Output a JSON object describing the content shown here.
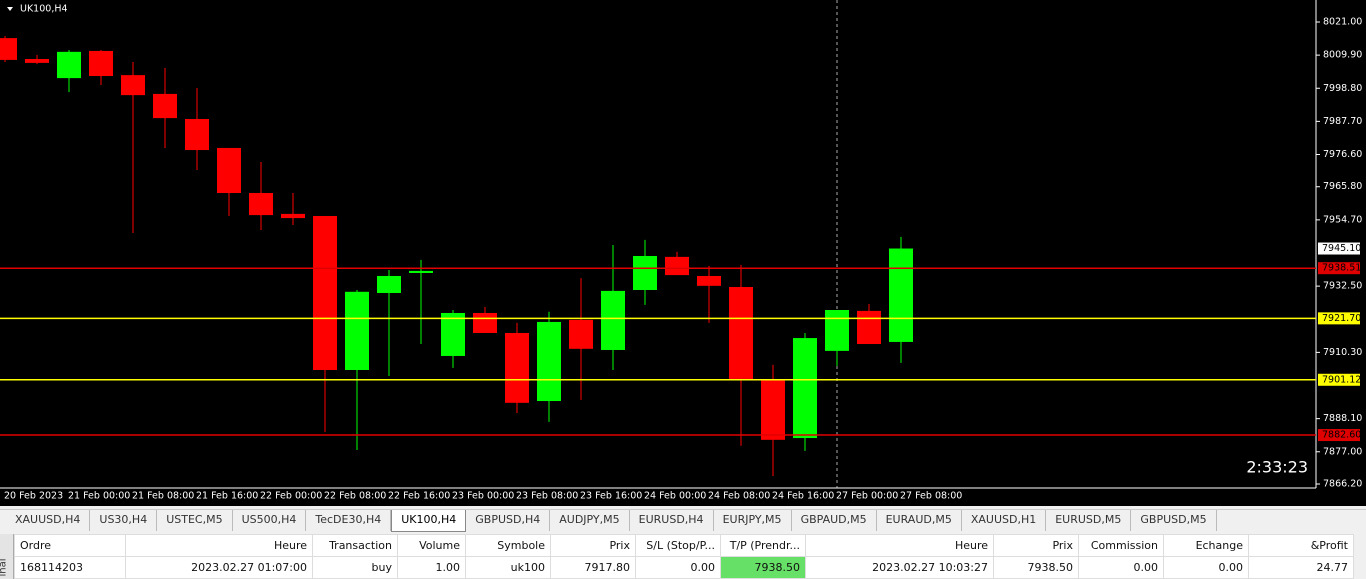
{
  "chart_data": {
    "type": "candlestick",
    "title": "UK100,H4",
    "categories": [
      "20 Feb 2023",
      null,
      "21 Feb 00:00",
      null,
      "21 Feb 08:00",
      null,
      "21 Feb 16:00",
      null,
      "22 Feb 00:00",
      null,
      "22 Feb 08:00",
      null,
      "22 Feb 16:00",
      null,
      "23 Feb 00:00",
      null,
      "23 Feb 08:00",
      null,
      "23 Feb 16:00",
      null,
      "24 Feb 00:00",
      null,
      "24 Feb 08:00",
      null,
      "24 Feb 16:00",
      null,
      "27 Feb 00:00",
      null,
      "27 Feb 08:00"
    ],
    "open": [
      8015.6,
      8008.6,
      8002.2,
      8011.3,
      8003.2,
      7996.9,
      7988.5,
      7978.8,
      7963.7,
      7956.7,
      7956.0,
      7904.4,
      7930.2,
      7936.9,
      7909.1,
      7923.5,
      7916.8,
      7894.0,
      7921.2,
      7911.1,
      7931.2,
      7942.3,
      7935.9,
      7932.2,
      7901.1,
      7881.6,
      7910.8,
      7924.2,
      7913.8
    ],
    "high": [
      8016.3,
      8010.0,
      8011.6,
      8011.6,
      8007.6,
      8005.6,
      7998.9,
      7978.8,
      7974.1,
      7963.7,
      7956.0,
      7931.2,
      7937.9,
      7941.3,
      7924.5,
      7925.5,
      7920.2,
      7923.9,
      7935.2,
      7946.3,
      7948.0,
      7944.0,
      7939.3,
      7939.6,
      7906.1,
      7916.8,
      7924.5,
      7926.5,
      7949.0
    ],
    "low": [
      8007.6,
      8006.9,
      7997.5,
      7999.9,
      7950.3,
      7978.8,
      7971.4,
      7956.0,
      7951.3,
      7953.0,
      7883.6,
      7877.6,
      7902.4,
      7913.1,
      7905.1,
      7916.8,
      7890.0,
      7887.0,
      7894.4,
      7904.4,
      7926.2,
      7936.2,
      7920.2,
      7879.0,
      7868.9,
      7877.3,
      7905.8,
      7913.1,
      7906.8
    ],
    "close": [
      8008.3,
      8007.3,
      8011.0,
      8002.9,
      7996.5,
      7988.8,
      7978.1,
      7963.7,
      7956.3,
      7955.3,
      7904.4,
      7930.6,
      7935.9,
      7937.6,
      7923.5,
      7916.8,
      7893.4,
      7920.5,
      7911.5,
      7930.9,
      7942.6,
      7936.2,
      7932.6,
      7901.4,
      7881.0,
      7915.1,
      7924.5,
      7913.1,
      7945.1
    ],
    "up_color": "#00ff00",
    "down_color": "#ff0000",
    "ylim": [
      7864.86,
      8028.37
    ],
    "yticks": [
      {
        "value": 8021,
        "label": "8021.00"
      },
      {
        "value": 8009.9,
        "label": "8009.90"
      },
      {
        "value": 7998.8,
        "label": "7998.80"
      },
      {
        "value": 7987.7,
        "label": "7987.70"
      },
      {
        "value": 7976.6,
        "label": "7976.60"
      },
      {
        "value": 7965.8,
        "label": "7965.80"
      },
      {
        "value": 7954.7,
        "label": "7954.70"
      },
      {
        "value": 7932.5,
        "label": "7932.50"
      },
      {
        "value": 7910.3,
        "label": "7910.30"
      },
      {
        "value": 7888.1,
        "label": "7888.10"
      },
      {
        "value": 7877,
        "label": "7877.00"
      },
      {
        "value": 7866.2,
        "label": "7866.20"
      }
    ],
    "hlines": [
      {
        "value": 7938.51,
        "color": "#e00000"
      },
      {
        "value": 7921.7,
        "label": "7921.70",
        "color": "#ffff00"
      },
      {
        "value": 7901.12,
        "color": "#ffff00"
      },
      {
        "value": 7882.6,
        "label": "7882.60",
        "color": "#e00000"
      }
    ],
    "last_price": {
      "value": 7945.1,
      "label": "7945.10"
    },
    "countdown": "2:33:23"
  },
  "tabs": [
    "XAUUSD,H4",
    "US30,H4",
    "USTEC,M5",
    "US500,H4",
    "TecDE30,H4",
    "UK100,H4",
    "GBPUSD,H4",
    "AUDJPY,M5",
    "EURUSD,H4",
    "EURJPY,M5",
    "GBPAUD,M5",
    "EURAUD,M5",
    "XAUUSD,H1",
    "EURUSD,M5",
    "GBPUSD,M5"
  ],
  "active_tab": 5,
  "side_label": "inal",
  "table": {
    "headers": [
      "Ordre",
      "Heure",
      "Transaction",
      "Volume",
      "Symbole",
      "Prix",
      "S/L (Stop/P...",
      "T/P (Prendr...",
      "Heure",
      "Prix",
      "Commission",
      "Echange",
      "&Profit"
    ],
    "rows": [
      [
        "168114203",
        "2023.02.27 01:07:00",
        "buy",
        "1.00",
        "uk100",
        "7917.80",
        "0.00",
        "7938.50",
        "2023.02.27 10:03:27",
        "7938.50",
        "0.00",
        "0.00",
        "24.77"
      ]
    ]
  }
}
